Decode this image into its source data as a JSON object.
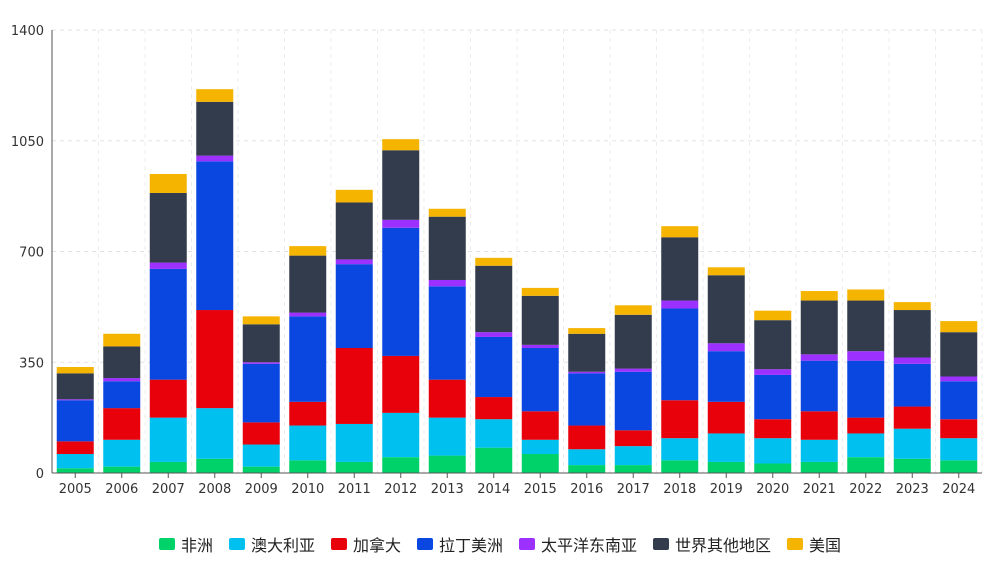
{
  "chart_data": {
    "type": "bar",
    "stacked": true,
    "title": "",
    "xlabel": "",
    "ylabel": "",
    "ylim": [
      0,
      1400
    ],
    "yticks": [
      "0",
      "350",
      "700",
      "1050",
      "1400"
    ],
    "grid": true,
    "legend_position": "bottom",
    "categories": [
      "2005",
      "2006",
      "2007",
      "2008",
      "2009",
      "2010",
      "2011",
      "2012",
      "2013",
      "2014",
      "2015",
      "2016",
      "2017",
      "2018",
      "2019",
      "2020",
      "2021",
      "2022",
      "2023",
      "2024"
    ],
    "series": [
      {
        "name": "非洲",
        "color": "#00d26a",
        "values": [
          15,
          20,
          35,
          45,
          20,
          40,
          35,
          50,
          55,
          80,
          60,
          25,
          25,
          40,
          35,
          30,
          35,
          50,
          45,
          40
        ]
      },
      {
        "name": "澳大利亚",
        "color": "#00c0f0",
        "values": [
          45,
          85,
          140,
          160,
          70,
          110,
          120,
          140,
          120,
          90,
          45,
          50,
          60,
          70,
          90,
          80,
          70,
          75,
          95,
          70
        ]
      },
      {
        "name": "加拿大",
        "color": "#e8000b",
        "values": [
          40,
          100,
          120,
          310,
          70,
          75,
          240,
          180,
          120,
          70,
          90,
          75,
          50,
          120,
          100,
          60,
          90,
          50,
          70,
          60
        ]
      },
      {
        "name": "拉丁美洲",
        "color": "#0a47e0",
        "values": [
          130,
          85,
          350,
          470,
          185,
          270,
          265,
          405,
          295,
          190,
          200,
          165,
          185,
          290,
          160,
          140,
          160,
          180,
          135,
          120
        ]
      },
      {
        "name": "太平洋东南亚",
        "color": "#9b30ff",
        "values": [
          3,
          10,
          20,
          18,
          5,
          12,
          15,
          25,
          20,
          15,
          10,
          5,
          10,
          25,
          25,
          18,
          20,
          30,
          20,
          15
        ]
      },
      {
        "name": "世界其他地区",
        "color": "#323c4c",
        "values": [
          82,
          100,
          220,
          170,
          120,
          180,
          180,
          220,
          200,
          210,
          155,
          120,
          170,
          200,
          215,
          155,
          170,
          160,
          150,
          140
        ]
      },
      {
        "name": "美国",
        "color": "#f5b400",
        "values": [
          20,
          40,
          60,
          40,
          25,
          30,
          40,
          35,
          25,
          25,
          25,
          18,
          30,
          35,
          25,
          30,
          30,
          35,
          25,
          35
        ]
      }
    ]
  }
}
